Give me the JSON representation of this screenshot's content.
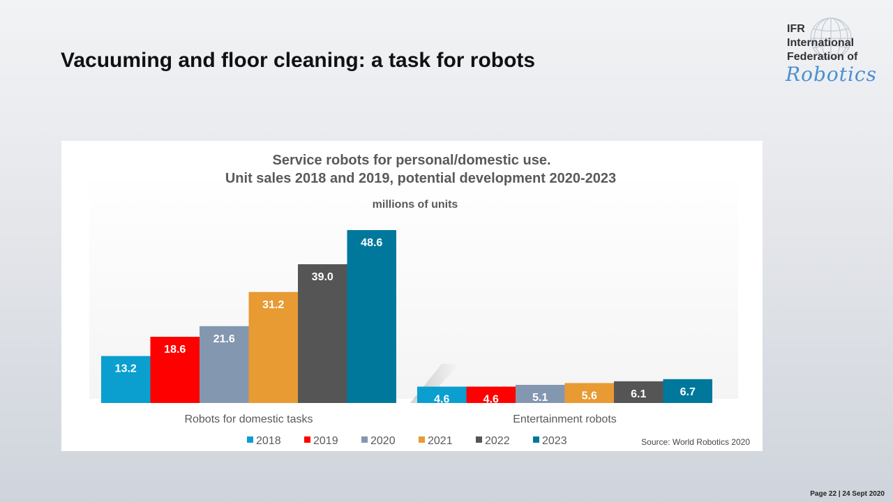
{
  "slide": {
    "title": "Vacuuming and floor cleaning: a task for robots",
    "footer": "Page 22 | 24 Sept 2020"
  },
  "logo": {
    "line1": "IFR",
    "line2": "International",
    "line3": "Federation of",
    "script": "Robotics"
  },
  "chart_data": {
    "type": "bar",
    "title_line1": "Service robots for personal/domestic use.",
    "title_line2": "Unit sales 2018 and 2019, potential development 2020-2023",
    "subtitle": "millions of units",
    "categories": [
      "Robots for domestic tasks",
      "Entertainment robots"
    ],
    "series": [
      {
        "name": "2018",
        "values": [
          13.2,
          4.6
        ],
        "labels": [
          "13.2",
          "4.6"
        ],
        "color": "#0a9fcf"
      },
      {
        "name": "2019",
        "values": [
          18.6,
          4.6
        ],
        "labels": [
          "18.6",
          "4.6"
        ],
        "color": "#ff0000"
      },
      {
        "name": "2020",
        "values": [
          21.6,
          5.1
        ],
        "labels": [
          "21.6",
          "5.1"
        ],
        "color": "#8497b0"
      },
      {
        "name": "2021",
        "values": [
          31.2,
          5.6
        ],
        "labels": [
          "31.2",
          "5.6"
        ],
        "color": "#e89a33"
      },
      {
        "name": "2022",
        "values": [
          39.0,
          6.1
        ],
        "labels": [
          "39.0",
          "6.1"
        ],
        "color": "#555555"
      },
      {
        "name": "2023",
        "values": [
          48.6,
          6.7
        ],
        "labels": [
          "48.6",
          "6.7"
        ],
        "color": "#00789c"
      }
    ],
    "ylim": [
      0,
      48.6
    ],
    "source": "Source: World Robotics 2020",
    "legend_position": "bottom"
  }
}
